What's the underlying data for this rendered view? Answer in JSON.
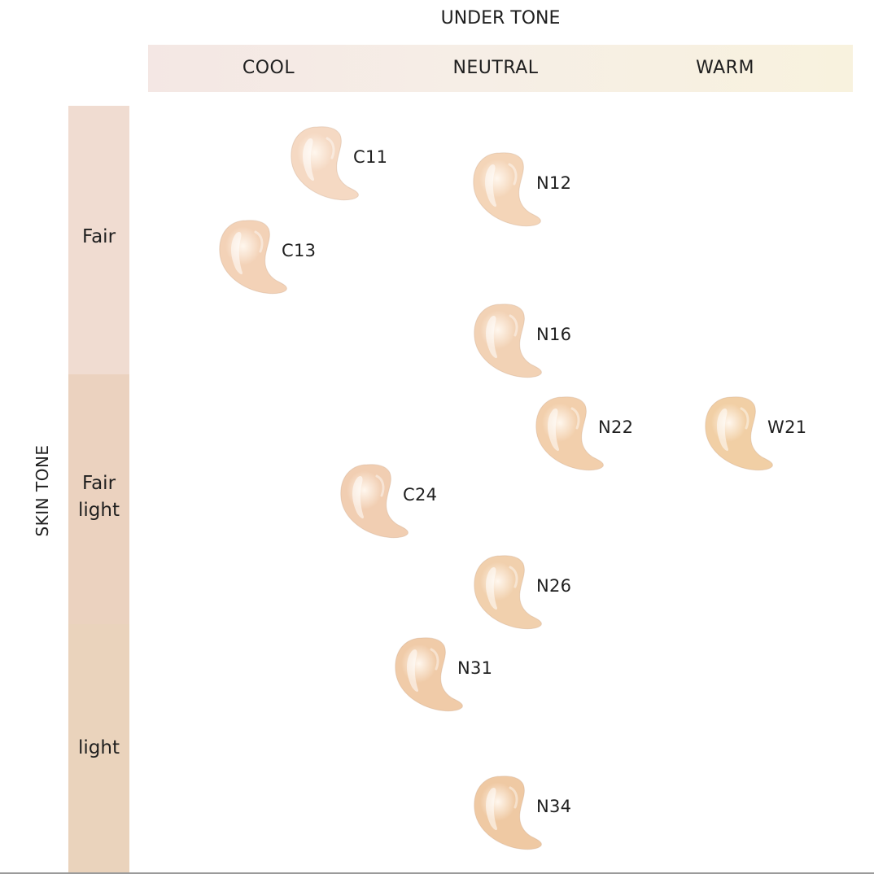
{
  "header": {
    "title": "UNDER TONE",
    "undertones": [
      "COOL",
      "NEUTRAL",
      "WARM"
    ]
  },
  "side": {
    "title": "SKIN TONE",
    "bands": [
      {
        "label": "Fair"
      },
      {
        "label": "Fair\nlight"
      },
      {
        "label": "light"
      }
    ]
  },
  "colors": {
    "cool_band": "#f4e7e4",
    "warm_band": "#f8f2de",
    "fair_band": "#f0dcd1",
    "fair_light_band": "#ebd2bf",
    "light_band": "#ead3bc"
  },
  "shades": [
    {
      "code": "C11",
      "undertone": "COOL",
      "skin_tone": "Fair",
      "color": "#f5d9c3"
    },
    {
      "code": "N12",
      "undertone": "NEUTRAL",
      "skin_tone": "Fair",
      "color": "#f4d5b8"
    },
    {
      "code": "C13",
      "undertone": "COOL",
      "skin_tone": "Fair",
      "color": "#f3d2b7"
    },
    {
      "code": "N16",
      "undertone": "NEUTRAL",
      "skin_tone": "Fair",
      "color": "#f2d2b5"
    },
    {
      "code": "N22",
      "undertone": "NEUTRAL",
      "skin_tone": "Fair light",
      "color": "#f2cfac"
    },
    {
      "code": "W21",
      "undertone": "WARM",
      "skin_tone": "Fair light",
      "color": "#f1cfa5"
    },
    {
      "code": "C24",
      "undertone": "COOL",
      "skin_tone": "Fair light",
      "color": "#f1ceb2"
    },
    {
      "code": "N26",
      "undertone": "NEUTRAL",
      "skin_tone": "Fair light",
      "color": "#f1d0ad"
    },
    {
      "code": "N31",
      "undertone": "NEUTRAL",
      "skin_tone": "light",
      "color": "#f0cba8"
    },
    {
      "code": "N34",
      "undertone": "NEUTRAL",
      "skin_tone": "light",
      "color": "#efc9a3"
    }
  ]
}
